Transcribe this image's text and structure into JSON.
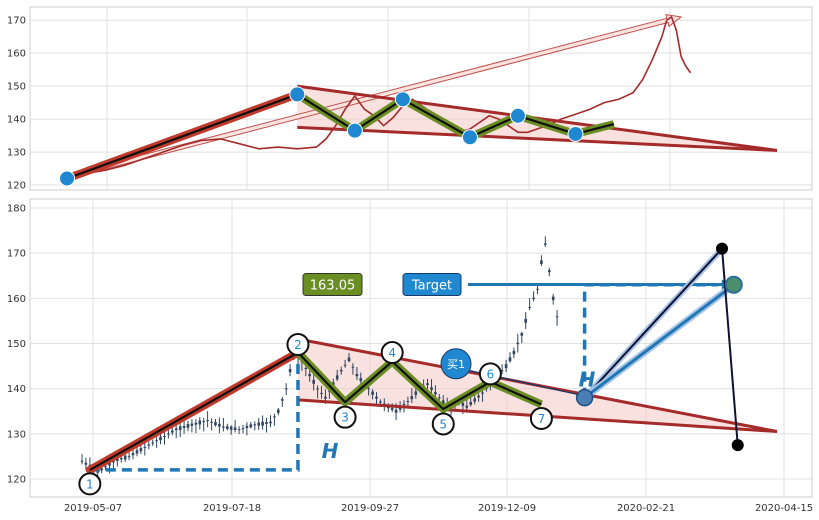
{
  "chart_data": [
    {
      "type": "line",
      "grid": true,
      "ylim": [
        118.5,
        174
      ],
      "yticks": [
        120,
        130,
        140,
        150,
        160,
        170
      ],
      "line_color": "#a52a2a",
      "price_series": [
        [
          0,
          122
        ],
        [
          4,
          123.5
        ],
        [
          8,
          124.5
        ],
        [
          12,
          126
        ],
        [
          16,
          128
        ],
        [
          20,
          130
        ],
        [
          24,
          132
        ],
        [
          28,
          133.5
        ],
        [
          32,
          134
        ],
        [
          36,
          132.5
        ],
        [
          40,
          131
        ],
        [
          44,
          131.5
        ],
        [
          48,
          131
        ],
        [
          52,
          131.5
        ],
        [
          54,
          134
        ],
        [
          56,
          138
        ],
        [
          58,
          143
        ],
        [
          60,
          147
        ],
        [
          62,
          143
        ],
        [
          64,
          141
        ],
        [
          66,
          138
        ],
        [
          68,
          140.5
        ],
        [
          70,
          144
        ],
        [
          72,
          146
        ],
        [
          74,
          144
        ],
        [
          76,
          142
        ],
        [
          78,
          140
        ],
        [
          80,
          138
        ],
        [
          82,
          136
        ],
        [
          84,
          137
        ],
        [
          86,
          139
        ],
        [
          88,
          141
        ],
        [
          90,
          140
        ],
        [
          92,
          138
        ],
        [
          94,
          136
        ],
        [
          96,
          136
        ],
        [
          98,
          137
        ],
        [
          100,
          138
        ],
        [
          103,
          140
        ],
        [
          106,
          141.5
        ],
        [
          109,
          143
        ],
        [
          112,
          145
        ],
        [
          115,
          146
        ],
        [
          118,
          148
        ],
        [
          120,
          152
        ],
        [
          122,
          158
        ],
        [
          124,
          165
        ],
        [
          125,
          170
        ],
        [
          126,
          171
        ],
        [
          127,
          167
        ],
        [
          128,
          159
        ],
        [
          129,
          156
        ],
        [
          130,
          154
        ]
      ],
      "zigzag": [
        [
          0,
          122
        ],
        [
          48,
          147.5
        ],
        [
          60,
          136.5
        ],
        [
          70,
          146
        ],
        [
          84,
          134.5
        ],
        [
          94,
          141
        ],
        [
          106,
          135.5
        ],
        [
          114,
          138.5
        ]
      ],
      "upper_trendline": [
        [
          48,
          150
        ],
        [
          148,
          130.5
        ]
      ],
      "lower_trendline": [
        [
          48,
          137.5
        ],
        [
          148,
          130.5
        ]
      ],
      "target_arrow": [
        [
          0,
          122.5
        ],
        [
          128,
          171
        ]
      ],
      "pattern_color": "#a52a2a",
      "zigzag_color": "#6b8e23",
      "marker_color": "#1f88d0"
    },
    {
      "type": "candlestick",
      "grid": true,
      "ylim": [
        116,
        182
      ],
      "yticks": [
        120,
        130,
        140,
        150,
        160,
        170,
        180
      ],
      "xtick_labels": [
        "2019-05-07",
        "2019-07-18",
        "2019-09-27",
        "2019-12-09",
        "2020-02-21",
        "2020-04-15"
      ],
      "price_series": [
        [
          0,
          124
        ],
        [
          4,
          121.5
        ],
        [
          8,
          124
        ],
        [
          12,
          125
        ],
        [
          16,
          127
        ],
        [
          20,
          129
        ],
        [
          24,
          131
        ],
        [
          28,
          132
        ],
        [
          32,
          133
        ],
        [
          36,
          131.5
        ],
        [
          40,
          131
        ],
        [
          44,
          132
        ],
        [
          48,
          132.5
        ],
        [
          50,
          135
        ],
        [
          52,
          140
        ],
        [
          54,
          148
        ],
        [
          56,
          146
        ],
        [
          58,
          143
        ],
        [
          60,
          140
        ],
        [
          62,
          138
        ],
        [
          64,
          141
        ],
        [
          66,
          144
        ],
        [
          68,
          146.5
        ],
        [
          70,
          143
        ],
        [
          72,
          141
        ],
        [
          74,
          139
        ],
        [
          76,
          137
        ],
        [
          78,
          136
        ],
        [
          80,
          135
        ],
        [
          82,
          136.5
        ],
        [
          84,
          138
        ],
        [
          86,
          140
        ],
        [
          88,
          141
        ],
        [
          90,
          139
        ],
        [
          92,
          137
        ],
        [
          94,
          136
        ],
        [
          96,
          137
        ],
        [
          98,
          136
        ],
        [
          100,
          137.5
        ],
        [
          102,
          139
        ],
        [
          104,
          141
        ],
        [
          106,
          143
        ],
        [
          108,
          145
        ],
        [
          110,
          148
        ],
        [
          112,
          152
        ],
        [
          114,
          158
        ],
        [
          116,
          162
        ],
        [
          117,
          168
        ],
        [
          118,
          172
        ],
        [
          119,
          166
        ],
        [
          120,
          160
        ],
        [
          121,
          156
        ]
      ],
      "points": [
        {
          "label": "1",
          "x": 2,
          "y": 122
        },
        {
          "label": "2",
          "x": 55,
          "y": 148
        },
        {
          "label": "3",
          "x": 67,
          "y": 137
        },
        {
          "label": "4",
          "x": 79,
          "y": 146
        },
        {
          "label": "5",
          "x": 92,
          "y": 135.5
        },
        {
          "label": "6",
          "x": 104,
          "y": 141.5
        },
        {
          "label": "7",
          "x": 117,
          "y": 136.5
        }
      ],
      "buy_signal": {
        "label": "买1",
        "x": 128,
        "y": 138
      },
      "price_box": {
        "label": "163.05",
        "y": 163.05
      },
      "target_box": {
        "label": "Target",
        "y": 163.05
      },
      "target_point": {
        "x": 166,
        "y": 163
      },
      "height_label": "H",
      "upper_trendline": [
        [
          55,
          151
        ],
        [
          177,
          130.5
        ]
      ],
      "lower_trendline": [
        [
          55,
          137.5
        ],
        [
          177,
          130.5
        ]
      ],
      "projection_high": [
        [
          128,
          138
        ],
        [
          163,
          171
        ]
      ],
      "final_markers": [
        {
          "x": 163,
          "y": 171
        },
        {
          "x": 167,
          "y": 127.5
        }
      ],
      "height_color": "#1f77b4",
      "price_box_color": "#6b8e23",
      "target_box_color": "#1f88d0",
      "candle_color": "#2f4560"
    }
  ]
}
